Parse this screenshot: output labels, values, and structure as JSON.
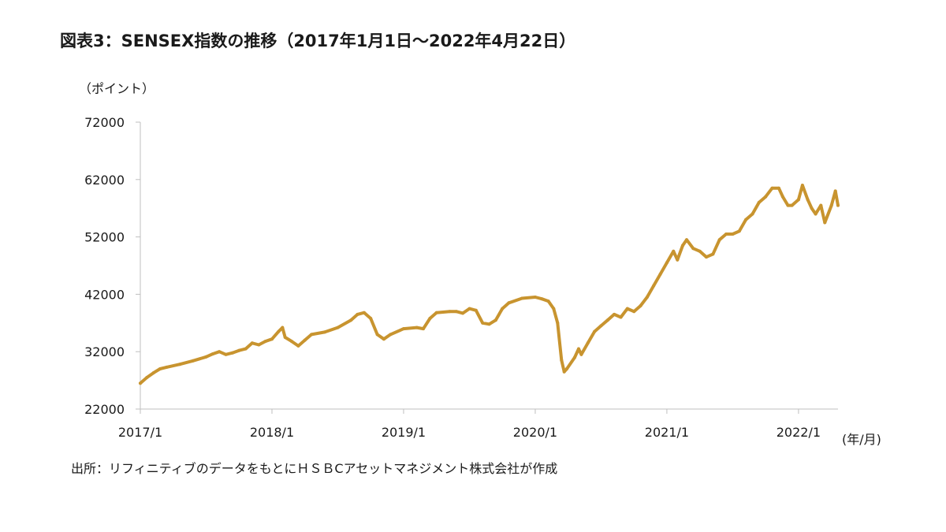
{
  "header": {
    "title": "図表3：SENSEX指数の推移（2017年1月1日～2022年4月22日）"
  },
  "footer": {
    "source": "出所：リフィニティブのデータをもとにＨＳＢCアセットマネジメント株式会社が作成"
  },
  "chart_data": {
    "type": "line",
    "title": "図表3：SENSEX指数の推移（2017年1月1日～2022年4月22日）",
    "ylabel": "（ポイント）",
    "xlabel": "(年/月)",
    "ylim": [
      22000,
      72000
    ],
    "xlim": [
      2017.0,
      2022.3
    ],
    "yticks": [
      22000,
      32000,
      42000,
      52000,
      62000,
      72000
    ],
    "ytick_labels": [
      "22000",
      "32000",
      "42000",
      "52000",
      "62000",
      "72000"
    ],
    "xtick_labels": [
      "2017/1",
      "2018/1",
      "2019/1",
      "2020/1",
      "2021/1",
      "2022/1"
    ],
    "xtick_values": [
      2017.0,
      2018.0,
      2019.0,
      2020.0,
      2021.0,
      2022.0
    ],
    "grid": false,
    "line_color": "#C8942F",
    "series": [
      {
        "x": [
          2017.0,
          2017.05,
          2017.1,
          2017.15,
          2017.2,
          2017.3,
          2017.4,
          2017.5,
          2017.55,
          2017.6,
          2017.65,
          2017.7,
          2017.75,
          2017.8,
          2017.85,
          2017.9,
          2017.95,
          2018.0,
          2018.05,
          2018.08,
          2018.1,
          2018.15,
          2018.2,
          2018.25,
          2018.3,
          2018.4,
          2018.5,
          2018.6,
          2018.65,
          2018.7,
          2018.75,
          2018.8,
          2018.85,
          2018.9,
          2019.0,
          2019.1,
          2019.15,
          2019.2,
          2019.25,
          2019.35,
          2019.4,
          2019.45,
          2019.5,
          2019.55,
          2019.6,
          2019.65,
          2019.7,
          2019.75,
          2019.8,
          2019.9,
          2020.0,
          2020.05,
          2020.1,
          2020.14,
          2020.17,
          2020.2,
          2020.22,
          2020.24,
          2020.3,
          2020.33,
          2020.35,
          2020.4,
          2020.45,
          2020.5,
          2020.55,
          2020.6,
          2020.65,
          2020.7,
          2020.75,
          2020.8,
          2020.85,
          2020.9,
          2020.95,
          2021.0,
          2021.05,
          2021.08,
          2021.12,
          2021.15,
          2021.2,
          2021.25,
          2021.3,
          2021.35,
          2021.4,
          2021.45,
          2021.5,
          2021.55,
          2021.6,
          2021.65,
          2021.7,
          2021.75,
          2021.8,
          2021.85,
          2021.88,
          2021.92,
          2021.95,
          2022.0,
          2022.03,
          2022.07,
          2022.1,
          2022.13,
          2022.17,
          2022.2,
          2022.25,
          2022.28,
          2022.3
        ],
        "values": [
          26500,
          27500,
          28300,
          29000,
          29300,
          29800,
          30400,
          31100,
          31600,
          32000,
          31500,
          31800,
          32200,
          32500,
          33500,
          33200,
          33800,
          34200,
          35500,
          36200,
          34500,
          33800,
          33000,
          34000,
          35000,
          35400,
          36200,
          37500,
          38500,
          38800,
          37800,
          35000,
          34200,
          35000,
          36000,
          36200,
          36000,
          37800,
          38800,
          39000,
          39000,
          38700,
          39500,
          39200,
          37000,
          36800,
          37500,
          39500,
          40500,
          41300,
          41500,
          41200,
          40800,
          39500,
          37000,
          30500,
          28500,
          29000,
          31000,
          32500,
          31500,
          33500,
          35500,
          36500,
          37500,
          38500,
          38000,
          39500,
          39000,
          40000,
          41500,
          43500,
          45500,
          47500,
          49500,
          48000,
          50500,
          51500,
          50000,
          49500,
          48500,
          49000,
          51500,
          52500,
          52500,
          53000,
          55000,
          56000,
          58000,
          59000,
          60500,
          60500,
          59000,
          57500,
          57500,
          58500,
          61000,
          58500,
          57000,
          56000,
          57500,
          54500,
          57500,
          60000,
          57500
        ]
      }
    ]
  }
}
